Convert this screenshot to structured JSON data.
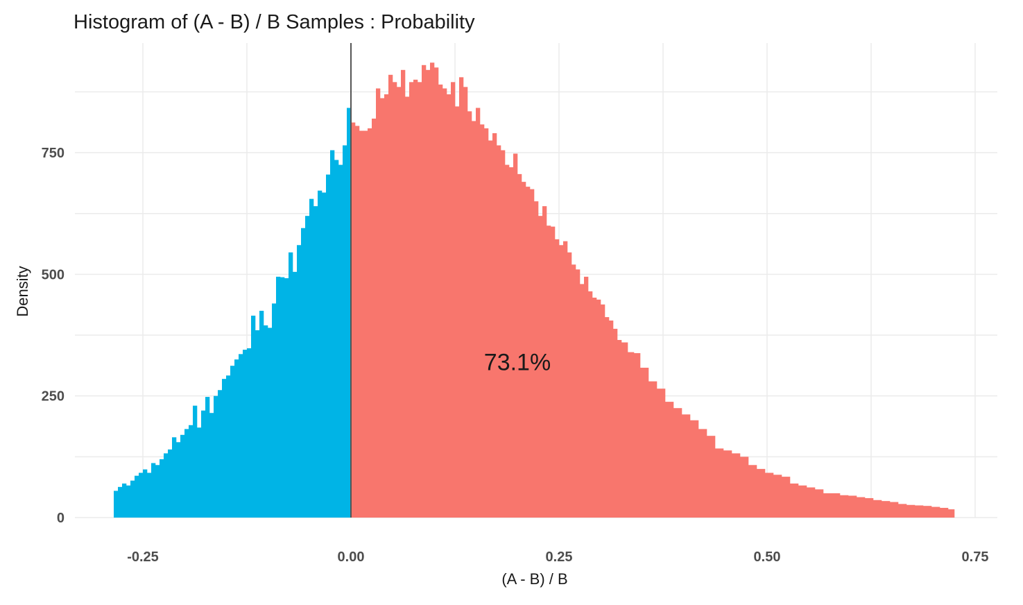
{
  "chart_data": {
    "type": "bar",
    "subtype": "histogram",
    "title": "Histogram of (A - B) / B Samples : Probability",
    "xlabel": "(A - B) / B",
    "ylabel": "Density",
    "xlim": [
      -0.325,
      0.775
    ],
    "ylim": [
      0,
      980
    ],
    "x_ticks": [
      -0.25,
      0.0,
      0.25,
      0.5,
      0.75
    ],
    "x_tick_labels": [
      "-0.25",
      "0.00",
      "0.25",
      "0.50",
      "0.75"
    ],
    "y_ticks": [
      0,
      250,
      500,
      750
    ],
    "y_tick_labels": [
      "0",
      "250",
      "500",
      "750"
    ],
    "grid": true,
    "reference_line_x": 0.0,
    "annotation": {
      "text": "73.1%",
      "x": 0.2,
      "y": 320
    },
    "colors": {
      "negative": "#00B4E6",
      "positive": "#F8766D",
      "grid": "#EBEBEB",
      "vline": "#555555"
    },
    "bin_width": 0.005,
    "bins": [
      [
        -0.2825,
        55
      ],
      [
        -0.2775,
        63
      ],
      [
        -0.2725,
        70
      ],
      [
        -0.2675,
        66
      ],
      [
        -0.2625,
        76
      ],
      [
        -0.2575,
        86
      ],
      [
        -0.2525,
        92
      ],
      [
        -0.2475,
        99
      ],
      [
        -0.2425,
        92
      ],
      [
        -0.2375,
        112
      ],
      [
        -0.2325,
        108
      ],
      [
        -0.2275,
        120
      ],
      [
        -0.2225,
        132
      ],
      [
        -0.2175,
        140
      ],
      [
        -0.2125,
        165
      ],
      [
        -0.2075,
        155
      ],
      [
        -0.2025,
        170
      ],
      [
        -0.1975,
        182
      ],
      [
        -0.1925,
        190
      ],
      [
        -0.1875,
        230
      ],
      [
        -0.1825,
        185
      ],
      [
        -0.1775,
        220
      ],
      [
        -0.1725,
        248
      ],
      [
        -0.1675,
        215
      ],
      [
        -0.1625,
        250
      ],
      [
        -0.1575,
        262
      ],
      [
        -0.1525,
        285
      ],
      [
        -0.1475,
        292
      ],
      [
        -0.1425,
        312
      ],
      [
        -0.1375,
        325
      ],
      [
        -0.1325,
        336
      ],
      [
        -0.1275,
        345
      ],
      [
        -0.1225,
        348
      ],
      [
        -0.1175,
        415
      ],
      [
        -0.1125,
        385
      ],
      [
        -0.1075,
        425
      ],
      [
        -0.1025,
        395
      ],
      [
        -0.0975,
        390
      ],
      [
        -0.0925,
        440
      ],
      [
        -0.0875,
        495
      ],
      [
        -0.0825,
        494
      ],
      [
        -0.0775,
        492
      ],
      [
        -0.0725,
        545
      ],
      [
        -0.0675,
        505
      ],
      [
        -0.0625,
        560
      ],
      [
        -0.0575,
        595
      ],
      [
        -0.0525,
        620
      ],
      [
        -0.0475,
        655
      ],
      [
        -0.0425,
        640
      ],
      [
        -0.0375,
        672
      ],
      [
        -0.0325,
        668
      ],
      [
        -0.0275,
        705
      ],
      [
        -0.0225,
        755
      ],
      [
        -0.0175,
        735
      ],
      [
        -0.0125,
        725
      ],
      [
        -0.0075,
        765
      ],
      [
        -0.0025,
        842
      ],
      [
        0.0025,
        812
      ],
      [
        0.0075,
        805
      ],
      [
        0.0125,
        795
      ],
      [
        0.0175,
        795
      ],
      [
        0.0225,
        800
      ],
      [
        0.0275,
        820
      ],
      [
        0.0325,
        882
      ],
      [
        0.0375,
        862
      ],
      [
        0.0425,
        870
      ],
      [
        0.0475,
        910
      ],
      [
        0.0525,
        895
      ],
      [
        0.0575,
        885
      ],
      [
        0.0625,
        920
      ],
      [
        0.0675,
        865
      ],
      [
        0.0725,
        895
      ],
      [
        0.0775,
        900
      ],
      [
        0.0825,
        895
      ],
      [
        0.0875,
        930
      ],
      [
        0.0925,
        920
      ],
      [
        0.0975,
        935
      ],
      [
        0.1025,
        925
      ],
      [
        0.1075,
        890
      ],
      [
        0.1125,
        882
      ],
      [
        0.1175,
        870
      ],
      [
        0.1225,
        895
      ],
      [
        0.1275,
        845
      ],
      [
        0.1325,
        905
      ],
      [
        0.1375,
        885
      ],
      [
        0.1425,
        835
      ],
      [
        0.1475,
        815
      ],
      [
        0.1525,
        842
      ],
      [
        0.1575,
        808
      ],
      [
        0.1625,
        800
      ],
      [
        0.1675,
        775
      ],
      [
        0.1725,
        790
      ],
      [
        0.1775,
        765
      ],
      [
        0.1825,
        755
      ],
      [
        0.1875,
        725
      ],
      [
        0.1925,
        720
      ],
      [
        0.1975,
        748
      ],
      [
        0.2025,
        706
      ],
      [
        0.2075,
        690
      ],
      [
        0.2125,
        680
      ],
      [
        0.2175,
        675
      ],
      [
        0.2225,
        650
      ],
      [
        0.2275,
        620
      ],
      [
        0.2325,
        640
      ],
      [
        0.2375,
        600
      ],
      [
        0.2425,
        598
      ],
      [
        0.2475,
        572
      ],
      [
        0.2525,
        560
      ],
      [
        0.2575,
        568
      ],
      [
        0.2625,
        545
      ],
      [
        0.2675,
        520
      ],
      [
        0.2725,
        510
      ],
      [
        0.2775,
        480
      ],
      [
        0.2825,
        495
      ],
      [
        0.2875,
        465
      ],
      [
        0.2925,
        452
      ],
      [
        0.2975,
        448
      ],
      [
        0.3025,
        438
      ],
      [
        0.3075,
        412
      ],
      [
        0.3125,
        405
      ],
      [
        0.3175,
        388
      ],
      [
        0.3225,
        365
      ],
      [
        0.3275,
        360
      ],
      [
        0.3375,
        340
      ],
      [
        0.3425,
        338
      ],
      [
        0.3525,
        308
      ],
      [
        0.3625,
        280
      ],
      [
        0.3725,
        265
      ],
      [
        0.3825,
        238
      ],
      [
        0.3925,
        225
      ],
      [
        0.4025,
        212
      ],
      [
        0.4125,
        200
      ],
      [
        0.4225,
        182
      ],
      [
        0.4325,
        168
      ],
      [
        0.4425,
        142
      ],
      [
        0.4525,
        138
      ],
      [
        0.4625,
        132
      ],
      [
        0.4725,
        125
      ],
      [
        0.4825,
        108
      ],
      [
        0.4925,
        100
      ],
      [
        0.5025,
        92
      ],
      [
        0.5125,
        88
      ],
      [
        0.5225,
        84
      ],
      [
        0.5325,
        70
      ],
      [
        0.5425,
        66
      ],
      [
        0.5525,
        62
      ],
      [
        0.5625,
        58
      ],
      [
        0.5725,
        50
      ],
      [
        0.5825,
        50
      ],
      [
        0.5925,
        46
      ],
      [
        0.6025,
        45
      ],
      [
        0.6125,
        42
      ],
      [
        0.6225,
        40
      ],
      [
        0.6325,
        36
      ],
      [
        0.6425,
        34
      ],
      [
        0.6525,
        32
      ],
      [
        0.6625,
        28
      ],
      [
        0.6725,
        26
      ],
      [
        0.6825,
        25
      ],
      [
        0.6925,
        24
      ],
      [
        0.7025,
        22
      ],
      [
        0.7125,
        20
      ],
      [
        0.7225,
        17
      ]
    ]
  }
}
